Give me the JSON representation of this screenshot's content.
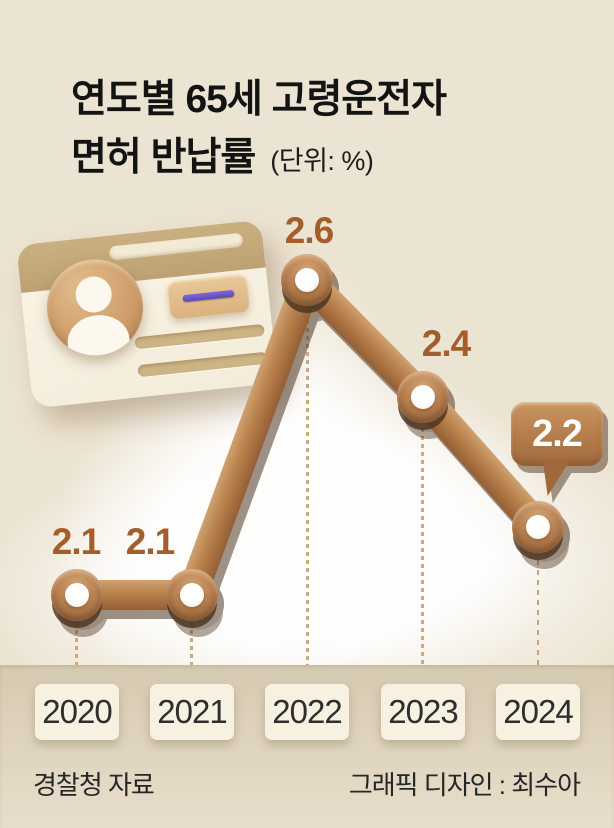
{
  "title": {
    "line1": "연도별 65세 고령운전자",
    "line2": "면허 반납률",
    "unit_label": "(단위: %)"
  },
  "chart_data": {
    "type": "line",
    "title": "연도별 65세 고령운전자 면허 반납률",
    "unit": "%",
    "categories": [
      "2020",
      "2021",
      "2022",
      "2023",
      "2024"
    ],
    "values": [
      2.1,
      2.1,
      2.6,
      2.4,
      2.2
    ],
    "point_labels": [
      "2.1",
      "2.1",
      "2.6",
      "2.4",
      "2.2"
    ],
    "highlight_category": "2024",
    "highlight_value": "2.2",
    "ylim": [
      2.0,
      2.7
    ],
    "legend": "none",
    "grid": "dotted-vertical-guides",
    "style": "3d-brown-rod-line-with-donut-markers"
  },
  "illustration": {
    "name": "drivers-license-card",
    "elements": [
      "avatar-person-silhouette",
      "header-band",
      "id-chip-with-purple-stripe",
      "text-lines"
    ]
  },
  "footer": {
    "source": "경찰청 자료",
    "credit": "그래픽 디자인 : 최수아"
  },
  "colors": {
    "background": "#ece4d2",
    "line_brown": "#a9714a",
    "line_shadow": "#4f3622",
    "value_label": "#a45d2b",
    "bubble_fill": "#b37c49",
    "bubble_text": "#ffffff",
    "bottom_band": "#ded3bd",
    "year_box": "#f7f1e2",
    "year_text": "#2e2e2e",
    "card_body": "#f8f2e4",
    "card_band": "#c3a87b",
    "chip_purple": "#6a55c8",
    "title_text": "#131313"
  }
}
